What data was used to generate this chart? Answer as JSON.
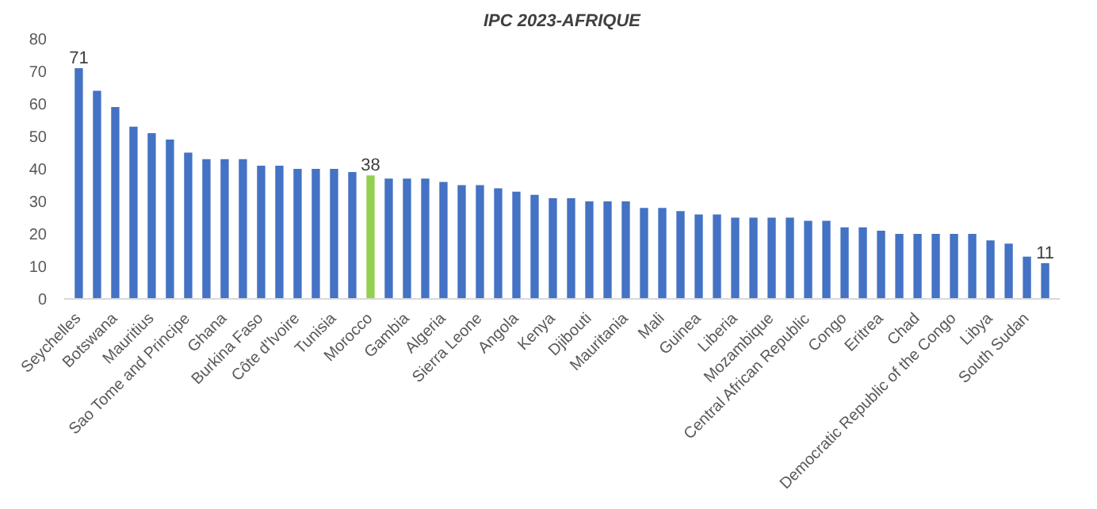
{
  "chart_data": {
    "type": "bar",
    "title": "IPC 2023-AFRIQUE",
    "categories": [
      "Seychelles",
      null,
      "Botswana",
      null,
      "Mauritius",
      null,
      "Sao Tome and Principe",
      null,
      "Ghana",
      null,
      "Burkina Faso",
      null,
      "Côte d'Ivoire",
      null,
      "Tunisia",
      null,
      "Morocco",
      null,
      "Gambia",
      null,
      "Algeria",
      null,
      "Sierra Leone",
      null,
      "Angola",
      null,
      "Kenya",
      null,
      "Djibouti",
      null,
      "Mauritania",
      null,
      "Mali",
      null,
      "Guinea",
      null,
      "Liberia",
      null,
      "Mozambique",
      null,
      "Central African Republic",
      null,
      "Congo",
      null,
      "Eritrea",
      null,
      "Chad",
      null,
      "Democratic Republic of the Congo",
      null,
      "Libya",
      null,
      "South Sudan",
      null
    ],
    "values": [
      71,
      64,
      59,
      53,
      51,
      49,
      45,
      43,
      43,
      43,
      41,
      41,
      40,
      40,
      40,
      39,
      38,
      37,
      37,
      37,
      36,
      35,
      35,
      34,
      33,
      32,
      31,
      31,
      30,
      30,
      30,
      28,
      28,
      27,
      26,
      26,
      25,
      25,
      25,
      25,
      24,
      24,
      22,
      22,
      21,
      20,
      20,
      20,
      20,
      20,
      18,
      17,
      13,
      11
    ],
    "colors": [
      "#4472c4",
      "#4472c4",
      "#4472c4",
      "#4472c4",
      "#4472c4",
      "#4472c4",
      "#4472c4",
      "#4472c4",
      "#4472c4",
      "#4472c4",
      "#4472c4",
      "#4472c4",
      "#4472c4",
      "#4472c4",
      "#4472c4",
      "#4472c4",
      "#92d050",
      "#4472c4",
      "#4472c4",
      "#4472c4",
      "#4472c4",
      "#4472c4",
      "#4472c4",
      "#4472c4",
      "#4472c4",
      "#4472c4",
      "#4472c4",
      "#4472c4",
      "#4472c4",
      "#4472c4",
      "#4472c4",
      "#4472c4",
      "#4472c4",
      "#4472c4",
      "#4472c4",
      "#4472c4",
      "#4472c4",
      "#4472c4",
      "#4472c4",
      "#4472c4",
      "#4472c4",
      "#4472c4",
      "#4472c4",
      "#4472c4",
      "#4472c4",
      "#4472c4",
      "#4472c4",
      "#4472c4",
      "#4472c4",
      "#4472c4",
      "#4472c4",
      "#4472c4",
      "#4472c4",
      "#4472c4"
    ],
    "value_labels": [
      "71",
      null,
      null,
      null,
      null,
      null,
      null,
      null,
      null,
      null,
      null,
      null,
      null,
      null,
      null,
      null,
      "38",
      null,
      null,
      null,
      null,
      null,
      null,
      null,
      null,
      null,
      null,
      null,
      null,
      null,
      null,
      null,
      null,
      null,
      null,
      null,
      null,
      null,
      null,
      null,
      null,
      null,
      null,
      null,
      null,
      null,
      null,
      null,
      null,
      null,
      null,
      null,
      null,
      "11"
    ],
    "ylim": [
      0,
      80
    ],
    "yticks": [
      0,
      10,
      20,
      30,
      40,
      50,
      60,
      70,
      80
    ],
    "grid": false
  }
}
